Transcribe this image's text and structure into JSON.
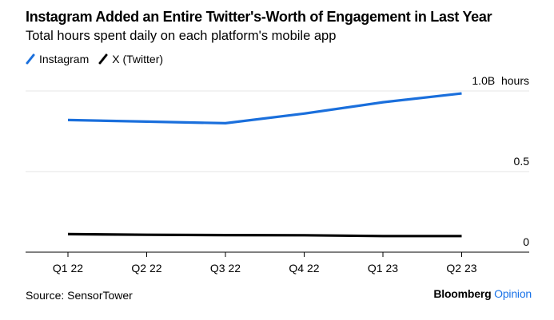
{
  "chart_data": {
    "type": "line",
    "title": "Instagram Added an Entire Twitter's-Worth of Engagement in Last Year",
    "subtitle": "Total hours spent daily on each platform's mobile app",
    "categories": [
      "Q1 22",
      "Q2 22",
      "Q3 22",
      "Q4 22",
      "Q1 23",
      "Q2 23"
    ],
    "series": [
      {
        "name": "Instagram",
        "color": "#1a6fdc",
        "values": [
          0.82,
          0.81,
          0.8,
          0.86,
          0.93,
          0.985
        ]
      },
      {
        "name": "X (Twitter)",
        "color": "#000000",
        "values": [
          0.112,
          0.108,
          0.106,
          0.105,
          0.1,
          0.1
        ]
      }
    ],
    "xlabel": "",
    "ylabel": "hours",
    "ylim": [
      0,
      1.0
    ],
    "yticks": [
      {
        "value": 0,
        "label": "0"
      },
      {
        "value": 0.5,
        "label": "0.5"
      },
      {
        "value": 1.0,
        "label": "1.0B  hours"
      }
    ],
    "grid": true,
    "legend": "top-left",
    "source": "Source: SensorTower"
  },
  "branding": {
    "name": "Bloomberg",
    "suffix": "Opinion"
  }
}
